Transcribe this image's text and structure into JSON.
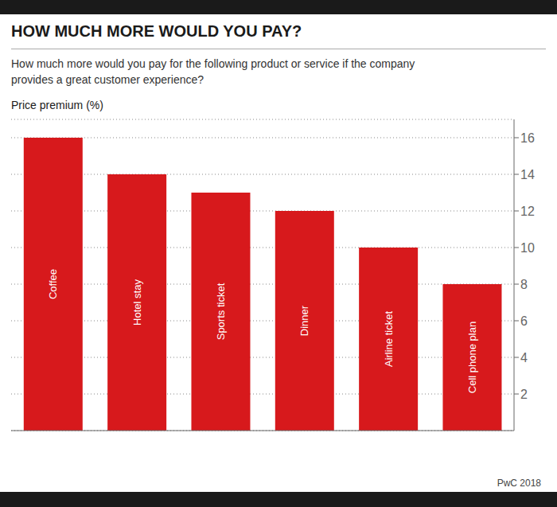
{
  "chart_data": {
    "type": "bar",
    "title": "HOW MUCH MORE WOULD YOU PAY?",
    "subtitle": "How much more would you pay for the following product or service if the company\nprovides a great customer experience?",
    "y_label": "Price premium (%)",
    "annotations": [
      "PwC 2018"
    ],
    "categories": [
      "Coffee",
      "Hotel stay",
      "Sports ticket",
      "Dinner",
      "Airline ticket",
      "Cell phone plan"
    ],
    "values": [
      16,
      14,
      13,
      12,
      10,
      8
    ],
    "color": "#D7191C",
    "ylim": [
      0,
      17
    ],
    "yticks": [
      2,
      4,
      6,
      8,
      10,
      12,
      14,
      16
    ],
    "grid": true,
    "tick_labels": "y"
  }
}
